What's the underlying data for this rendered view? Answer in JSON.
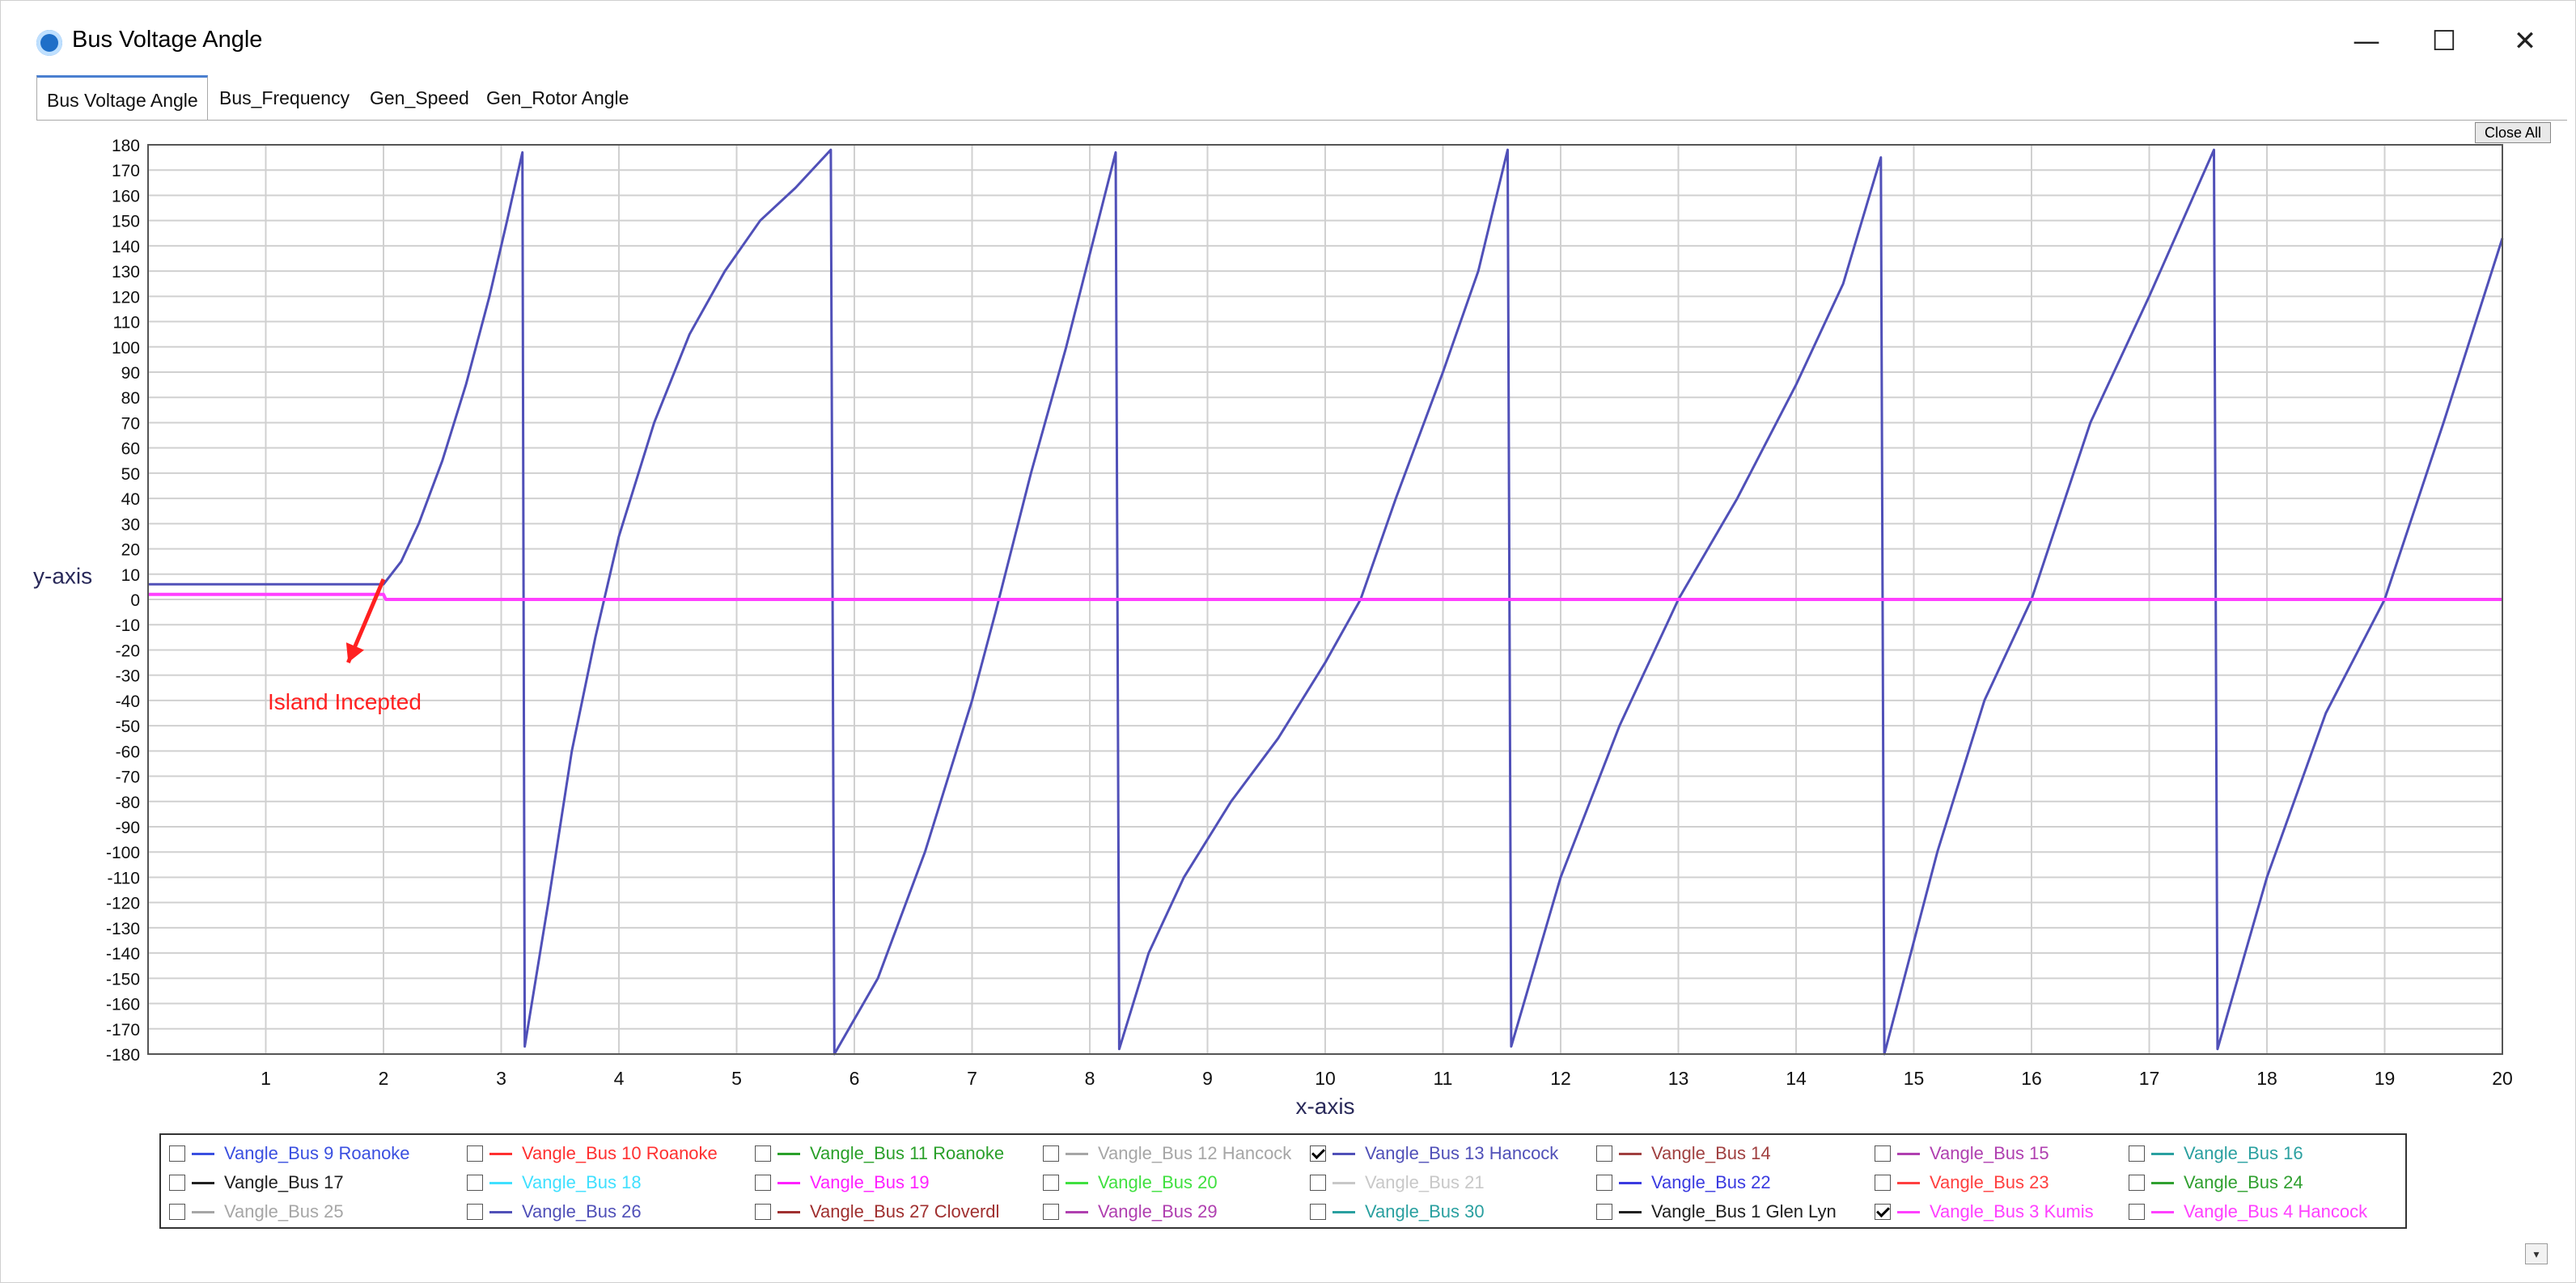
{
  "window": {
    "title": "Bus Voltage Angle",
    "minimize_glyph": "—",
    "maximize_glyph": "☐",
    "close_glyph": "✕"
  },
  "tabs": [
    {
      "label": "Bus Voltage Angle",
      "active": true
    },
    {
      "label": "Bus_Frequency",
      "active": false
    },
    {
      "label": "Gen_Speed",
      "active": false
    },
    {
      "label": "Gen_Rotor Angle",
      "active": false
    }
  ],
  "close_all_label": "Close All",
  "scroll_down_glyph": "▾",
  "chart_data": {
    "type": "line",
    "xlabel": "x-axis",
    "ylabel": "y-axis",
    "xlim": [
      0,
      20
    ],
    "ylim": [
      -180,
      180
    ],
    "x_ticks": [
      1,
      2,
      3,
      4,
      5,
      6,
      7,
      8,
      9,
      10,
      11,
      12,
      13,
      14,
      15,
      16,
      17,
      18,
      19,
      20
    ],
    "y_ticks": [
      180,
      170,
      160,
      150,
      140,
      130,
      120,
      110,
      100,
      90,
      80,
      70,
      60,
      50,
      40,
      30,
      20,
      10,
      0,
      -10,
      -20,
      -30,
      -40,
      -50,
      -60,
      -70,
      -80,
      -90,
      -100,
      -110,
      -120,
      -130,
      -140,
      -150,
      -160,
      -170,
      -180
    ],
    "grid": true,
    "annotation": {
      "text": "Island Incepted",
      "color": "#ff2020",
      "x": 1.7,
      "y": -25,
      "arrow_to_x": 2.0,
      "arrow_to_y": 8
    },
    "series": [
      {
        "name": "Vangle_Bus 13 Hancock",
        "color": "#5050b8",
        "points": [
          [
            0,
            6
          ],
          [
            2.0,
            6
          ],
          [
            2.15,
            15
          ],
          [
            2.3,
            30
          ],
          [
            2.5,
            55
          ],
          [
            2.7,
            85
          ],
          [
            2.9,
            120
          ],
          [
            3.05,
            150
          ],
          [
            3.18,
            177
          ],
          [
            3.2,
            -177
          ],
          [
            3.4,
            -120
          ],
          [
            3.6,
            -60
          ],
          [
            3.8,
            -15
          ],
          [
            4.0,
            25
          ],
          [
            4.3,
            70
          ],
          [
            4.6,
            105
          ],
          [
            4.9,
            130
          ],
          [
            5.2,
            150
          ],
          [
            5.5,
            163
          ],
          [
            5.8,
            178
          ],
          [
            5.83,
            -180
          ],
          [
            6.2,
            -150
          ],
          [
            6.6,
            -100
          ],
          [
            7.0,
            -40
          ],
          [
            7.2,
            -5
          ],
          [
            7.5,
            50
          ],
          [
            7.8,
            100
          ],
          [
            8.22,
            177
          ],
          [
            8.25,
            -178
          ],
          [
            8.5,
            -140
          ],
          [
            8.8,
            -110
          ],
          [
            9.2,
            -80
          ],
          [
            9.6,
            -55
          ],
          [
            10.0,
            -25
          ],
          [
            10.3,
            0
          ],
          [
            10.6,
            40
          ],
          [
            11.0,
            90
          ],
          [
            11.3,
            130
          ],
          [
            11.55,
            178
          ],
          [
            11.58,
            -177
          ],
          [
            12.0,
            -110
          ],
          [
            12.5,
            -50
          ],
          [
            13.0,
            0
          ],
          [
            13.5,
            40
          ],
          [
            14.0,
            85
          ],
          [
            14.4,
            125
          ],
          [
            14.72,
            175
          ],
          [
            14.75,
            -180
          ],
          [
            15.2,
            -100
          ],
          [
            15.6,
            -40
          ],
          [
            16.0,
            0
          ],
          [
            16.5,
            70
          ],
          [
            17.0,
            120
          ],
          [
            17.55,
            178
          ],
          [
            17.58,
            -178
          ],
          [
            18.0,
            -110
          ],
          [
            18.5,
            -45
          ],
          [
            19.0,
            0
          ],
          [
            19.5,
            70
          ],
          [
            20.0,
            143
          ]
        ]
      },
      {
        "name": "Vangle_Bus 3 Kumis",
        "color": "#ff40ff",
        "points": [
          [
            0,
            2
          ],
          [
            2.0,
            2
          ],
          [
            2.02,
            0
          ],
          [
            20.0,
            0
          ]
        ]
      }
    ],
    "legend": [
      {
        "label": "Vangle_Bus 9 Roanoke",
        "color": "#3a4fe0",
        "checked": false
      },
      {
        "label": "Vangle_Bus 10 Roanoke",
        "color": "#ff3030",
        "checked": false
      },
      {
        "label": "Vangle_Bus 11 Roanoke",
        "color": "#2aa02a",
        "checked": false
      },
      {
        "label": "Vangle_Bus 12 Hancock",
        "color": "#a6a6a6",
        "checked": false
      },
      {
        "label": "Vangle_Bus 13 Hancock",
        "color": "#5050b8",
        "checked": true
      },
      {
        "label": "Vangle_Bus 14",
        "color": "#a04040",
        "checked": false
      },
      {
        "label": "Vangle_Bus 15",
        "color": "#b040b0",
        "checked": false
      },
      {
        "label": "Vangle_Bus 16",
        "color": "#2aa0a0",
        "checked": false
      },
      {
        "label": "Vangle_Bus 17",
        "color": "#202020",
        "checked": false
      },
      {
        "label": "Vangle_Bus 18",
        "color": "#40e0ff",
        "checked": false
      },
      {
        "label": "Vangle_Bus 19",
        "color": "#ff20ff",
        "checked": false
      },
      {
        "label": "Vangle_Bus 20",
        "color": "#40e040",
        "checked": false
      },
      {
        "label": "Vangle_Bus 21",
        "color": "#c8c8c8",
        "checked": false
      },
      {
        "label": "Vangle_Bus 22",
        "color": "#3a3ae0",
        "checked": false
      },
      {
        "label": "Vangle_Bus 23",
        "color": "#ff4040",
        "checked": false
      },
      {
        "label": "Vangle_Bus 24",
        "color": "#30a030",
        "checked": false
      },
      {
        "label": "Vangle_Bus 25",
        "color": "#a6a6a6",
        "checked": false
      },
      {
        "label": "Vangle_Bus 26",
        "color": "#5050b8",
        "checked": false
      },
      {
        "label": "Vangle_Bus 27 Cloverdl",
        "color": "#a03030",
        "checked": false
      },
      {
        "label": "Vangle_Bus 29",
        "color": "#b040b0",
        "checked": false
      },
      {
        "label": "Vangle_Bus 30",
        "color": "#2aa0a0",
        "checked": false
      },
      {
        "label": "Vangle_Bus 1 Glen Lyn",
        "color": "#202020",
        "checked": false
      },
      {
        "label": "Vangle_Bus 3 Kumis",
        "color": "#ff40ff",
        "checked": true
      },
      {
        "label": "Vangle_Bus 4 Hancock",
        "color": "#ff40ff",
        "checked": false
      }
    ]
  }
}
